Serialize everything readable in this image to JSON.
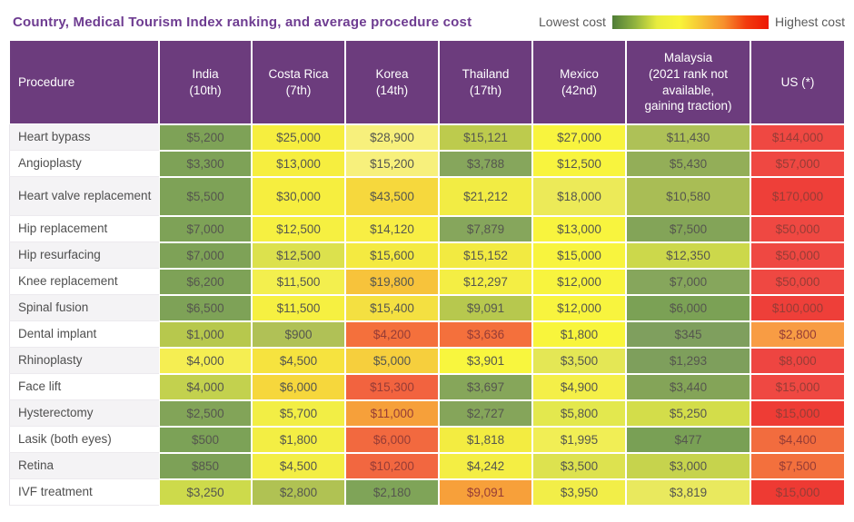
{
  "title": "Country, Medical Tourism Index ranking, and average procedure cost",
  "legend": {
    "low_label": "Lowest cost",
    "high_label": "Highest cost",
    "gradient": [
      "#4f7d38",
      "#8fb23f",
      "#e8ec3e",
      "#f9f53a",
      "#f6c235",
      "#f78f2d",
      "#f23b0e",
      "#ed1703"
    ]
  },
  "colors": {
    "header_bg": "#6c3c7d",
    "title_text": "#6e3c91",
    "cell_text": "#55564e",
    "cell_text_red": "#963c36",
    "grid_line": "#ffffff"
  },
  "chart_data": {
    "type": "heatmap",
    "title": "Country, Medical Tourism Index ranking, and average procedure cost",
    "legend": {
      "low": "Lowest cost",
      "high": "Highest cost",
      "position": "top-right"
    },
    "columns": [
      {
        "label": "Procedure"
      },
      {
        "label": "India\n(10th)"
      },
      {
        "label": "Costa Rica\n(7th)"
      },
      {
        "label": "Korea\n(14th)"
      },
      {
        "label": "Thailand\n(17th)"
      },
      {
        "label": "Mexico\n(42nd)"
      },
      {
        "label": "Malaysia\n(2021 rank not\navailable,\ngaining traction)"
      },
      {
        "label": "US (*)"
      }
    ],
    "rows": [
      {
        "label": "Heart bypass",
        "cells": [
          {
            "t": "$5,200",
            "v": 5200,
            "bg": "#7ea257"
          },
          {
            "t": "$25,000",
            "v": 25000,
            "bg": "#f6ee3f"
          },
          {
            "t": "$28,900",
            "v": 28900,
            "bg": "#f7f07c"
          },
          {
            "t": "$15,121",
            "v": 15121,
            "bg": "#bdcb4d"
          },
          {
            "t": "$27,000",
            "v": 27000,
            "bg": "#f8f43e"
          },
          {
            "t": "$11,430",
            "v": 11430,
            "bg": "#aec157"
          },
          {
            "t": "$144,000",
            "v": 144000,
            "bg": "#ef4842",
            "tc": "#963c36"
          }
        ]
      },
      {
        "label": "Angioplasty",
        "cells": [
          {
            "t": "$3,300",
            "v": 3300,
            "bg": "#7ea257"
          },
          {
            "t": "$13,000",
            "v": 13000,
            "bg": "#f6ee3f"
          },
          {
            "t": "$15,200",
            "v": 15200,
            "bg": "#f7f07c"
          },
          {
            "t": "$3,788",
            "v": 3788,
            "bg": "#86a65c"
          },
          {
            "t": "$12,500",
            "v": 12500,
            "bg": "#f8f43e"
          },
          {
            "t": "$5,430",
            "v": 5430,
            "bg": "#93ae58"
          },
          {
            "t": "$57,000",
            "v": 57000,
            "bg": "#ef4842",
            "tc": "#963c36"
          }
        ]
      },
      {
        "label": "Heart valve replacement",
        "tall": true,
        "cells": [
          {
            "t": "$5,500",
            "v": 5500,
            "bg": "#7ea257"
          },
          {
            "t": "$30,000",
            "v": 30000,
            "bg": "#f6ee3f"
          },
          {
            "t": "$43,500",
            "v": 43500,
            "bg": "#f6d83d"
          },
          {
            "t": "$21,212",
            "v": 21212,
            "bg": "#f2ec44"
          },
          {
            "t": "$18,000",
            "v": 18000,
            "bg": "#ecea58"
          },
          {
            "t": "$10,580",
            "v": 10580,
            "bg": "#a9bd55"
          },
          {
            "t": "$170,000",
            "v": 170000,
            "bg": "#ee3f39",
            "tc": "#963c36"
          }
        ]
      },
      {
        "label": "Hip replacement",
        "cells": [
          {
            "t": "$7,000",
            "v": 7000,
            "bg": "#7ea257"
          },
          {
            "t": "$12,500",
            "v": 12500,
            "bg": "#f6f041"
          },
          {
            "t": "$14,120",
            "v": 14120,
            "bg": "#f8ee44"
          },
          {
            "t": "$7,879",
            "v": 7879,
            "bg": "#86a65c"
          },
          {
            "t": "$13,000",
            "v": 13000,
            "bg": "#f8f43e"
          },
          {
            "t": "$7,500",
            "v": 7500,
            "bg": "#83a458"
          },
          {
            "t": "$50,000",
            "v": 50000,
            "bg": "#ef4842",
            "tc": "#963c36"
          }
        ]
      },
      {
        "label": "Hip resurfacing",
        "cells": [
          {
            "t": "$7,000",
            "v": 7000,
            "bg": "#7ea257"
          },
          {
            "t": "$12,500",
            "v": 12500,
            "bg": "#dce14d"
          },
          {
            "t": "$15,600",
            "v": 15600,
            "bg": "#f4ea41"
          },
          {
            "t": "$15,152",
            "v": 15152,
            "bg": "#f2ea41"
          },
          {
            "t": "$15,000",
            "v": 15000,
            "bg": "#f8f43e"
          },
          {
            "t": "$12,350",
            "v": 12350,
            "bg": "#ccd84b"
          },
          {
            "t": "$50,000",
            "v": 50000,
            "bg": "#ef4842",
            "tc": "#963c36"
          }
        ]
      },
      {
        "label": "Knee replacement",
        "cells": [
          {
            "t": "$6,200",
            "v": 6200,
            "bg": "#7ea257"
          },
          {
            "t": "$11,500",
            "v": 11500,
            "bg": "#f3ef4e"
          },
          {
            "t": "$19,800",
            "v": 19800,
            "bg": "#f7c33b"
          },
          {
            "t": "$12,297",
            "v": 12297,
            "bg": "#f4ee44"
          },
          {
            "t": "$12,000",
            "v": 12000,
            "bg": "#f8f43e"
          },
          {
            "t": "$7,000",
            "v": 7000,
            "bg": "#86a65c"
          },
          {
            "t": "$50,000",
            "v": 50000,
            "bg": "#ef4842",
            "tc": "#963c36"
          }
        ]
      },
      {
        "label": "Spinal fusion",
        "cells": [
          {
            "t": "$6,500",
            "v": 6500,
            "bg": "#7ea257"
          },
          {
            "t": "$11,500",
            "v": 11500,
            "bg": "#f6f041"
          },
          {
            "t": "$15,400",
            "v": 15400,
            "bg": "#f4e041"
          },
          {
            "t": "$9,091",
            "v": 9091,
            "bg": "#b7c84e"
          },
          {
            "t": "$12,000",
            "v": 12000,
            "bg": "#f8f43e"
          },
          {
            "t": "$6,000",
            "v": 6000,
            "bg": "#7ba155"
          },
          {
            "t": "$100,000",
            "v": 100000,
            "bg": "#ee3f39",
            "tc": "#963c36"
          }
        ]
      },
      {
        "label": "Dental implant",
        "cells": [
          {
            "t": "$1,000",
            "v": 1000,
            "bg": "#b7c84d"
          },
          {
            "t": "$900",
            "v": 900,
            "bg": "#b0c156"
          },
          {
            "t": "$4,200",
            "v": 4200,
            "bg": "#f4703c",
            "tc": "#963c36"
          },
          {
            "t": "$3,636",
            "v": 3636,
            "bg": "#f4703c",
            "tc": "#963c36"
          },
          {
            "t": "$1,800",
            "v": 1800,
            "bg": "#f8f53c"
          },
          {
            "t": "$345",
            "v": 345,
            "bg": "#7f9f5e"
          },
          {
            "t": "$2,800",
            "v": 2800,
            "bg": "#f89c44",
            "tc": "#963c36"
          }
        ]
      },
      {
        "label": "Rhinoplasty",
        "cells": [
          {
            "t": "$4,000",
            "v": 4000,
            "bg": "#f5ee52"
          },
          {
            "t": "$4,500",
            "v": 4500,
            "bg": "#f6e33f"
          },
          {
            "t": "$5,000",
            "v": 5000,
            "bg": "#f6cf3d"
          },
          {
            "t": "$3,901",
            "v": 3901,
            "bg": "#f8f63e"
          },
          {
            "t": "$3,500",
            "v": 3500,
            "bg": "#e4e755"
          },
          {
            "t": "$1,293",
            "v": 1293,
            "bg": "#7e9f5c"
          },
          {
            "t": "$8,000",
            "v": 8000,
            "bg": "#ee4541",
            "tc": "#963c36"
          }
        ]
      },
      {
        "label": "Face lift",
        "cells": [
          {
            "t": "$4,000",
            "v": 4000,
            "bg": "#c3d14e"
          },
          {
            "t": "$6,000",
            "v": 6000,
            "bg": "#f6d73c"
          },
          {
            "t": "$15,300",
            "v": 15300,
            "bg": "#f2633f",
            "tc": "#963c36"
          },
          {
            "t": "$3,697",
            "v": 3697,
            "bg": "#86a65a"
          },
          {
            "t": "$4,900",
            "v": 4900,
            "bg": "#f4ef48"
          },
          {
            "t": "$3,440",
            "v": 3440,
            "bg": "#84a458"
          },
          {
            "t": "$15,000",
            "v": 15000,
            "bg": "#ef4842",
            "tc": "#963c36"
          }
        ]
      },
      {
        "label": "Hysterectomy",
        "cells": [
          {
            "t": "$2,500",
            "v": 2500,
            "bg": "#82a458"
          },
          {
            "t": "$5,700",
            "v": 5700,
            "bg": "#f2ee45"
          },
          {
            "t": "$11,000",
            "v": 11000,
            "bg": "#f6a03a",
            "tc": "#963c36"
          },
          {
            "t": "$2,727",
            "v": 2727,
            "bg": "#85a55a"
          },
          {
            "t": "$5,800",
            "v": 5800,
            "bg": "#e3e84e"
          },
          {
            "t": "$5,250",
            "v": 5250,
            "bg": "#d3dd4a"
          },
          {
            "t": "$15,000",
            "v": 15000,
            "bg": "#ee3c35",
            "tc": "#963c36"
          }
        ]
      },
      {
        "label": "Lasik (both eyes)",
        "cells": [
          {
            "t": "$500",
            "v": 500,
            "bg": "#7ca257"
          },
          {
            "t": "$1,800",
            "v": 1800,
            "bg": "#f3ee44"
          },
          {
            "t": "$6,000",
            "v": 6000,
            "bg": "#f2693f",
            "tc": "#963c36"
          },
          {
            "t": "$1,818",
            "v": 1818,
            "bg": "#f3ec41"
          },
          {
            "t": "$1,995",
            "v": 1995,
            "bg": "#f1ee55"
          },
          {
            "t": "$477",
            "v": 477,
            "bg": "#79a055"
          },
          {
            "t": "$4,400",
            "v": 4400,
            "bg": "#f26c3e",
            "tc": "#963c36"
          }
        ]
      },
      {
        "label": "Retina",
        "cells": [
          {
            "t": "$850",
            "v": 850,
            "bg": "#7da157"
          },
          {
            "t": "$4,500",
            "v": 4500,
            "bg": "#f3ee44"
          },
          {
            "t": "$10,200",
            "v": 10200,
            "bg": "#f26740",
            "tc": "#963c36"
          },
          {
            "t": "$4,242",
            "v": 4242,
            "bg": "#f4ee44"
          },
          {
            "t": "$3,500",
            "v": 3500,
            "bg": "#dde24f"
          },
          {
            "t": "$3,000",
            "v": 3000,
            "bg": "#c6d34d"
          },
          {
            "t": "$7,500",
            "v": 7500,
            "bg": "#f3703d",
            "tc": "#963c36"
          }
        ]
      },
      {
        "label": "IVF treatment",
        "cells": [
          {
            "t": "$3,250",
            "v": 3250,
            "bg": "#cdda4b"
          },
          {
            "t": "$2,800",
            "v": 2800,
            "bg": "#b0c253"
          },
          {
            "t": "$2,180",
            "v": 2180,
            "bg": "#7fa458"
          },
          {
            "t": "$9,091",
            "v": 9091,
            "bg": "#f7a03a",
            "tc": "#963c36"
          },
          {
            "t": "$3,950",
            "v": 3950,
            "bg": "#f2ee48"
          },
          {
            "t": "$3,819",
            "v": 3819,
            "bg": "#e9e95e"
          },
          {
            "t": "$15,000",
            "v": 15000,
            "bg": "#ee3a33",
            "tc": "#963c36"
          }
        ]
      }
    ]
  }
}
